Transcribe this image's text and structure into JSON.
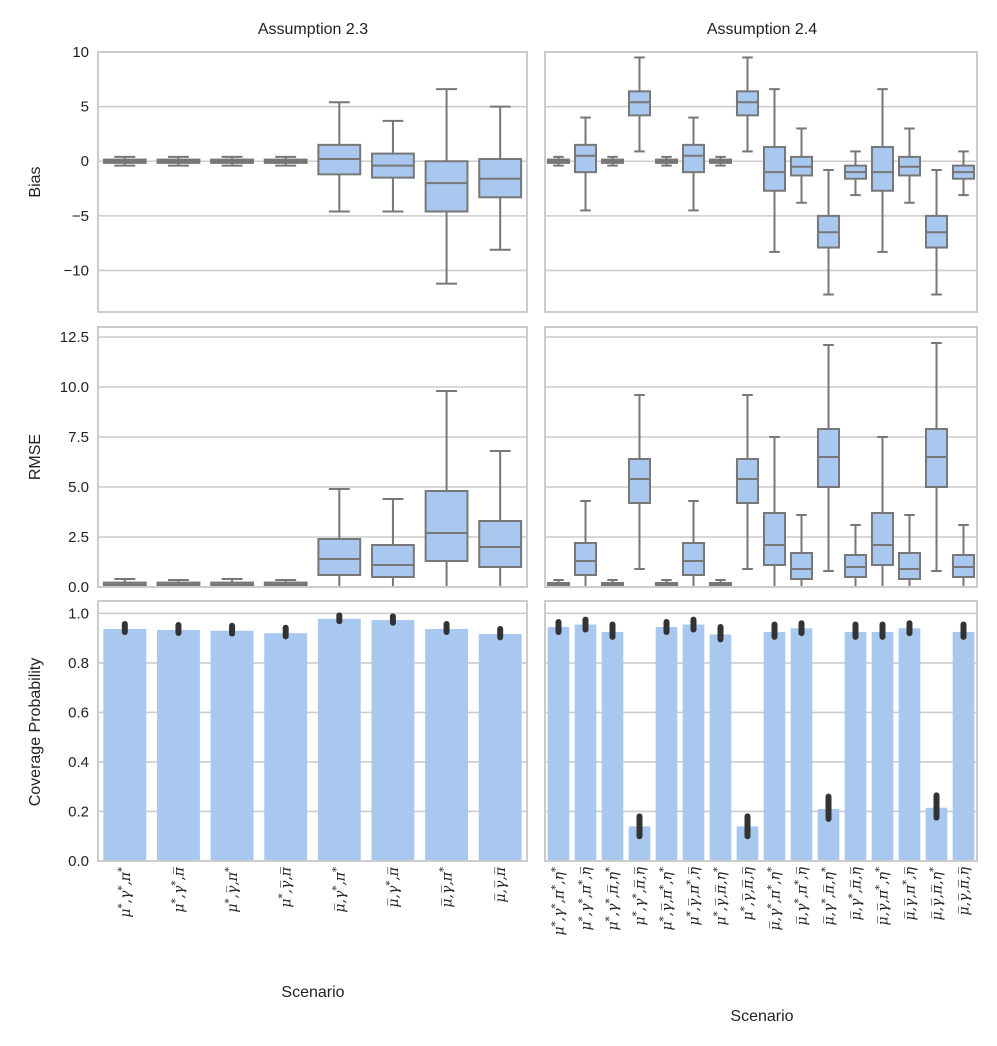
{
  "figure": {
    "xlabel": "Scenario",
    "colors": {
      "fill": "#a8c8f0",
      "stroke": "#777777",
      "grid": "#cccccc",
      "ci": "#333333"
    }
  },
  "chart_data": [
    {
      "id": "left-bias",
      "type": "box",
      "title": "Assumption 2.3",
      "xlabel": "Scenario",
      "ylabel": "Bias",
      "ylim": [
        -13.8,
        10
      ],
      "yticks": [
        10,
        5,
        0,
        -5,
        -10
      ],
      "ytick_labels": [
        "10",
        "5",
        "0",
        "−5",
        "−10"
      ],
      "categories": [
        "μ*,γ*,π*",
        "μ*,γ*,π̄",
        "μ*,γ̄,π*",
        "μ*,γ̄,π̄",
        "μ̄,γ*,π*",
        "μ̄,γ*,π̄",
        "μ̄,γ̄,π*",
        "μ̄,γ̄,π̄"
      ],
      "boxes": [
        {
          "min": -0.4,
          "q1": -0.15,
          "median": 0.0,
          "q3": 0.15,
          "max": 0.4
        },
        {
          "min": -0.4,
          "q1": -0.15,
          "median": 0.0,
          "q3": 0.15,
          "max": 0.4
        },
        {
          "min": -0.4,
          "q1": -0.15,
          "median": 0.0,
          "q3": 0.15,
          "max": 0.4
        },
        {
          "min": -0.4,
          "q1": -0.15,
          "median": 0.0,
          "q3": 0.15,
          "max": 0.4
        },
        {
          "min": -4.6,
          "q1": -1.2,
          "median": 0.2,
          "q3": 1.5,
          "max": 5.4
        },
        {
          "min": -4.6,
          "q1": -1.5,
          "median": -0.4,
          "q3": 0.7,
          "max": 3.7
        },
        {
          "min": -11.2,
          "q1": -4.6,
          "median": -2.0,
          "q3": 0.0,
          "max": 6.6
        },
        {
          "min": -8.1,
          "q1": -3.3,
          "median": -1.6,
          "q3": 0.2,
          "max": 5.0
        }
      ]
    },
    {
      "id": "right-bias",
      "type": "box",
      "title": "Assumption 2.4",
      "xlabel": "Scenario",
      "ylabel": "",
      "ylim": [
        -13.8,
        10
      ],
      "yticks": [
        10,
        5,
        0,
        -5,
        -10
      ],
      "ytick_labels": [],
      "categories": [
        "μ*,γ*,π*,η*",
        "μ*,γ*,π*,η̄",
        "μ*,γ*,π̄,η*",
        "μ*,γ*,π̄,η̄",
        "μ*,γ̄,π*,η*",
        "μ*,γ̄,π*,η̄",
        "μ*,γ̄,π̄,η*",
        "μ*,γ̄,π̄,η̄",
        "μ̄,γ*,π*,η*",
        "μ̄,γ*,π*,η̄",
        "μ̄,γ*,π̄,η*",
        "μ̄,γ*,π̄,η̄",
        "μ̄,γ̄,π*,η*",
        "μ̄,γ̄,π*,η̄",
        "μ̄,γ̄,π̄,η*",
        "μ̄,γ̄,π̄,η̄"
      ],
      "boxes": [
        {
          "min": -0.4,
          "q1": -0.15,
          "median": 0.0,
          "q3": 0.15,
          "max": 0.4
        },
        {
          "min": -4.5,
          "q1": -1.0,
          "median": 0.5,
          "q3": 1.5,
          "max": 4.0
        },
        {
          "min": -0.4,
          "q1": -0.15,
          "median": 0.0,
          "q3": 0.15,
          "max": 0.4
        },
        {
          "min": 0.9,
          "q1": 4.2,
          "median": 5.4,
          "q3": 6.4,
          "max": 9.5
        },
        {
          "min": -0.4,
          "q1": -0.15,
          "median": 0.0,
          "q3": 0.15,
          "max": 0.4
        },
        {
          "min": -4.5,
          "q1": -1.0,
          "median": 0.5,
          "q3": 1.5,
          "max": 4.0
        },
        {
          "min": -0.4,
          "q1": -0.15,
          "median": 0.0,
          "q3": 0.15,
          "max": 0.4
        },
        {
          "min": 0.9,
          "q1": 4.2,
          "median": 5.4,
          "q3": 6.4,
          "max": 9.5
        },
        {
          "min": -8.3,
          "q1": -2.7,
          "median": -1.0,
          "q3": 1.3,
          "max": 6.6
        },
        {
          "min": -3.8,
          "q1": -1.3,
          "median": -0.5,
          "q3": 0.4,
          "max": 3.0
        },
        {
          "min": -12.2,
          "q1": -7.9,
          "median": -6.5,
          "q3": -5.0,
          "max": -0.8
        },
        {
          "min": -3.1,
          "q1": -1.6,
          "median": -1.0,
          "q3": -0.4,
          "max": 0.9
        },
        {
          "min": -8.3,
          "q1": -2.7,
          "median": -1.0,
          "q3": 1.3,
          "max": 6.6
        },
        {
          "min": -3.8,
          "q1": -1.3,
          "median": -0.5,
          "q3": 0.4,
          "max": 3.0
        },
        {
          "min": -12.2,
          "q1": -7.9,
          "median": -6.5,
          "q3": -5.0,
          "max": -0.8
        },
        {
          "min": -3.1,
          "q1": -1.6,
          "median": -1.0,
          "q3": -0.4,
          "max": 0.9
        }
      ]
    },
    {
      "id": "left-rmse",
      "type": "box",
      "title": "",
      "xlabel": "Scenario",
      "ylabel": "RMSE",
      "ylim": [
        0,
        13.0
      ],
      "yticks": [
        12.5,
        10.0,
        7.5,
        5.0,
        2.5,
        0.0
      ],
      "ytick_labels": [
        "12.5",
        "10.0",
        "7.5",
        "5.0",
        "2.5",
        "0.0"
      ],
      "categories": [
        "μ*,γ*,π*",
        "μ*,γ*,π̄",
        "μ*,γ̄,π*",
        "μ*,γ̄,π̄",
        "μ̄,γ*,π*",
        "μ̄,γ*,π̄",
        "μ̄,γ̄,π*",
        "μ̄,γ̄,π̄"
      ],
      "boxes": [
        {
          "min": 0.0,
          "q1": 0.05,
          "median": 0.12,
          "q3": 0.22,
          "max": 0.4
        },
        {
          "min": 0.0,
          "q1": 0.05,
          "median": 0.12,
          "q3": 0.22,
          "max": 0.35
        },
        {
          "min": 0.0,
          "q1": 0.05,
          "median": 0.12,
          "q3": 0.22,
          "max": 0.4
        },
        {
          "min": 0.0,
          "q1": 0.05,
          "median": 0.12,
          "q3": 0.22,
          "max": 0.35
        },
        {
          "min": 0.0,
          "q1": 0.6,
          "median": 1.4,
          "q3": 2.4,
          "max": 4.9
        },
        {
          "min": 0.0,
          "q1": 0.5,
          "median": 1.1,
          "q3": 2.1,
          "max": 4.4
        },
        {
          "min": 0.0,
          "q1": 1.3,
          "median": 2.7,
          "q3": 4.8,
          "max": 9.8
        },
        {
          "min": 0.0,
          "q1": 1.0,
          "median": 2.0,
          "q3": 3.3,
          "max": 6.8
        }
      ]
    },
    {
      "id": "right-rmse",
      "type": "box",
      "title": "",
      "xlabel": "Scenario",
      "ylabel": "",
      "ylim": [
        0,
        13.0
      ],
      "yticks": [
        12.5,
        10.0,
        7.5,
        5.0,
        2.5,
        0.0
      ],
      "ytick_labels": [],
      "categories": [
        "μ*,γ*,π*,η*",
        "μ*,γ*,π*,η̄",
        "μ*,γ*,π̄,η*",
        "μ*,γ*,π̄,η̄",
        "μ*,γ̄,π*,η*",
        "μ*,γ̄,π*,η̄",
        "μ*,γ̄,π̄,η*",
        "μ*,γ̄,π̄,η̄",
        "μ̄,γ*,π*,η*",
        "μ̄,γ*,π*,η̄",
        "μ̄,γ*,π̄,η*",
        "μ̄,γ*,π̄,η̄",
        "μ̄,γ̄,π*,η*",
        "μ̄,γ̄,π*,η̄",
        "μ̄,γ̄,π̄,η*",
        "μ̄,γ̄,π̄,η̄"
      ],
      "boxes": [
        {
          "min": 0.0,
          "q1": 0.05,
          "median": 0.12,
          "q3": 0.2,
          "max": 0.35
        },
        {
          "min": 0.0,
          "q1": 0.6,
          "median": 1.3,
          "q3": 2.2,
          "max": 4.3
        },
        {
          "min": 0.0,
          "q1": 0.05,
          "median": 0.12,
          "q3": 0.2,
          "max": 0.35
        },
        {
          "min": 0.9,
          "q1": 4.2,
          "median": 5.4,
          "q3": 6.4,
          "max": 9.6
        },
        {
          "min": 0.0,
          "q1": 0.05,
          "median": 0.12,
          "q3": 0.2,
          "max": 0.35
        },
        {
          "min": 0.0,
          "q1": 0.6,
          "median": 1.3,
          "q3": 2.2,
          "max": 4.3
        },
        {
          "min": 0.0,
          "q1": 0.05,
          "median": 0.12,
          "q3": 0.2,
          "max": 0.35
        },
        {
          "min": 0.9,
          "q1": 4.2,
          "median": 5.4,
          "q3": 6.4,
          "max": 9.6
        },
        {
          "min": 0.0,
          "q1": 1.1,
          "median": 2.1,
          "q3": 3.7,
          "max": 7.5
        },
        {
          "min": 0.0,
          "q1": 0.4,
          "median": 0.9,
          "q3": 1.7,
          "max": 3.6
        },
        {
          "min": 0.8,
          "q1": 5.0,
          "median": 6.5,
          "q3": 7.9,
          "max": 12.1
        },
        {
          "min": 0.0,
          "q1": 0.5,
          "median": 1.0,
          "q3": 1.6,
          "max": 3.1
        },
        {
          "min": 0.0,
          "q1": 1.1,
          "median": 2.1,
          "q3": 3.7,
          "max": 7.5
        },
        {
          "min": 0.0,
          "q1": 0.4,
          "median": 0.9,
          "q3": 1.7,
          "max": 3.6
        },
        {
          "min": 0.8,
          "q1": 5.0,
          "median": 6.5,
          "q3": 7.9,
          "max": 12.2
        },
        {
          "min": 0.0,
          "q1": 0.5,
          "median": 1.0,
          "q3": 1.6,
          "max": 3.1
        }
      ]
    },
    {
      "id": "left-coverage",
      "type": "bar",
      "title": "",
      "xlabel": "Scenario",
      "ylabel": "Coverage Probability",
      "ylim": [
        0,
        1.05
      ],
      "yticks": [
        1.0,
        0.8,
        0.6,
        0.4,
        0.2,
        0.0
      ],
      "ytick_labels": [
        "1.0",
        "0.8",
        "0.6",
        "0.4",
        "0.2",
        "0.0"
      ],
      "categories": [
        "μ*,γ*,π*",
        "μ*,γ*,π̄",
        "μ*,γ̄,π*",
        "μ*,γ̄,π̄",
        "μ̄,γ*,π*",
        "μ̄,γ*,π̄",
        "μ̄,γ̄,π*",
        "μ̄,γ̄,π̄"
      ],
      "values": [
        0.937,
        0.933,
        0.93,
        0.92,
        0.978,
        0.973,
        0.937,
        0.917
      ],
      "ci": [
        [
          0.925,
          0.957
        ],
        [
          0.921,
          0.953
        ],
        [
          0.918,
          0.95
        ],
        [
          0.907,
          0.942
        ],
        [
          0.968,
          0.992
        ],
        [
          0.962,
          0.988
        ],
        [
          0.925,
          0.957
        ],
        [
          0.903,
          0.937
        ]
      ]
    },
    {
      "id": "right-coverage",
      "type": "bar",
      "title": "",
      "xlabel": "Scenario",
      "ylabel": "",
      "ylim": [
        0,
        1.05
      ],
      "yticks": [
        1.0,
        0.8,
        0.6,
        0.4,
        0.2,
        0.0
      ],
      "ytick_labels": [],
      "categories": [
        "μ*,γ*,π*,η*",
        "μ*,γ*,π*,η̄",
        "μ*,γ*,π̄,η*",
        "μ*,γ*,π̄,η̄",
        "μ*,γ̄,π*,η*",
        "μ*,γ̄,π*,η̄",
        "μ*,γ̄,π̄,η*",
        "μ*,γ̄,π̄,η̄",
        "μ̄,γ*,π*,η*",
        "μ̄,γ*,π*,η̄",
        "μ̄,γ*,π̄,η*",
        "μ̄,γ*,π̄,η̄",
        "μ̄,γ̄,π*,η*",
        "μ̄,γ̄,π*,η̄",
        "μ̄,γ̄,π̄,η*",
        "μ̄,γ̄,π̄,η̄"
      ],
      "values": [
        0.945,
        0.955,
        0.925,
        0.14,
        0.945,
        0.955,
        0.915,
        0.14,
        0.925,
        0.94,
        0.21,
        0.925,
        0.925,
        0.94,
        0.215,
        0.925
      ],
      "ci": [
        [
          0.925,
          0.965
        ],
        [
          0.935,
          0.975
        ],
        [
          0.905,
          0.955
        ],
        [
          0.1,
          0.18
        ],
        [
          0.925,
          0.965
        ],
        [
          0.935,
          0.975
        ],
        [
          0.895,
          0.945
        ],
        [
          0.1,
          0.18
        ],
        [
          0.905,
          0.955
        ],
        [
          0.92,
          0.96
        ],
        [
          0.17,
          0.26
        ],
        [
          0.905,
          0.955
        ],
        [
          0.905,
          0.955
        ],
        [
          0.92,
          0.96
        ],
        [
          0.175,
          0.265
        ],
        [
          0.905,
          0.955
        ]
      ]
    }
  ]
}
